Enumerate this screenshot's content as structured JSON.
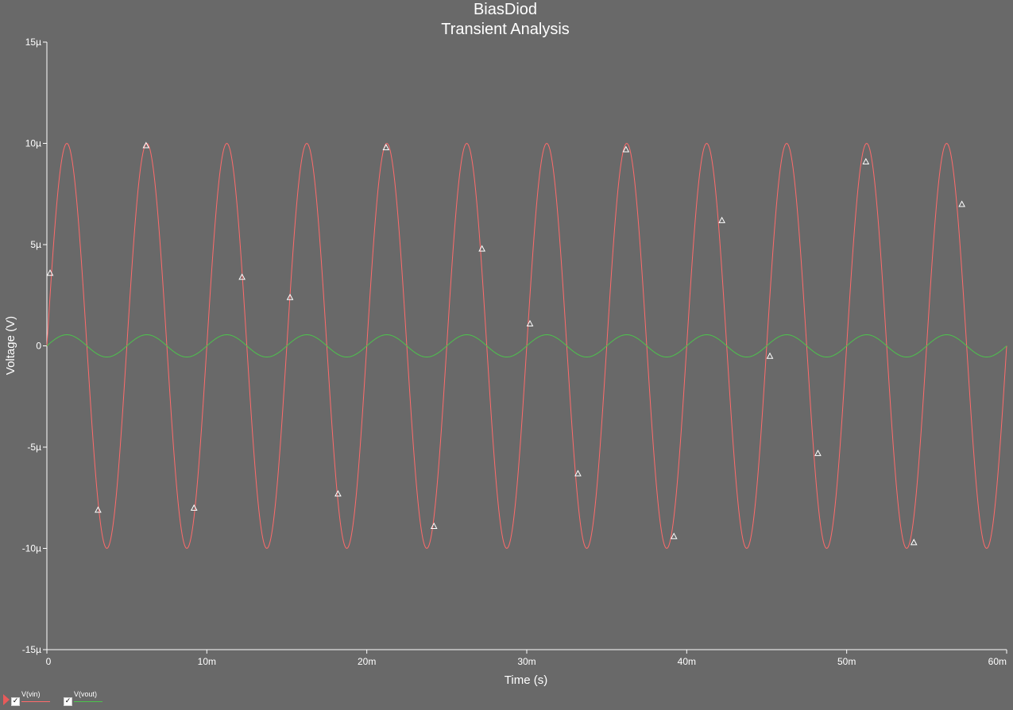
{
  "chart_data": {
    "type": "line",
    "title": "BiasDiod",
    "subtitle": "Transient Analysis",
    "xlabel": "Time (s)",
    "ylabel": "Voltage (V)",
    "xlim": [
      0,
      0.06
    ],
    "ylim": [
      -15,
      15
    ],
    "x_ticks": [
      {
        "value": 0,
        "label": "0"
      },
      {
        "value": 0.01,
        "label": "10m"
      },
      {
        "value": 0.02,
        "label": "20m"
      },
      {
        "value": 0.03,
        "label": "30m"
      },
      {
        "value": 0.04,
        "label": "40m"
      },
      {
        "value": 0.05,
        "label": "50m"
      },
      {
        "value": 0.06,
        "label": "60m"
      }
    ],
    "y_ticks": [
      {
        "value": 15,
        "label": "15µ"
      },
      {
        "value": 10,
        "label": "10µ"
      },
      {
        "value": 5,
        "label": "5µ"
      },
      {
        "value": 0,
        "label": "0"
      },
      {
        "value": -5,
        "label": "-5µ"
      },
      {
        "value": -10,
        "label": "-10µ"
      },
      {
        "value": -15,
        "label": "-15µ"
      }
    ],
    "grid": false,
    "legend_position": "bottom-left",
    "series": [
      {
        "name": "V(vin)",
        "color": "#ff6b6b",
        "waveform": "sine",
        "amplitude": 10,
        "frequency": 200,
        "offset": 0,
        "marker_x": [
          0.0002,
          0.0032,
          0.0062,
          0.0092,
          0.0122,
          0.0152,
          0.0182,
          0.0212,
          0.0242,
          0.0272,
          0.0302,
          0.0332,
          0.0362,
          0.0392,
          0.0422,
          0.0452,
          0.0482,
          0.0512,
          0.0542,
          0.0572
        ],
        "marker_y": [
          3.6,
          -8.1,
          9.9,
          -8.0,
          3.4,
          2.4,
          -7.3,
          9.8,
          -8.9,
          4.8,
          1.1,
          -6.3,
          9.7,
          -9.4,
          6.2,
          -0.5,
          -5.3,
          9.1,
          -9.7,
          7.0
        ]
      },
      {
        "name": "V(vout)",
        "color": "#4cc44c",
        "waveform": "sine",
        "amplitude": 0.55,
        "frequency": 200,
        "offset": 0
      }
    ]
  }
}
